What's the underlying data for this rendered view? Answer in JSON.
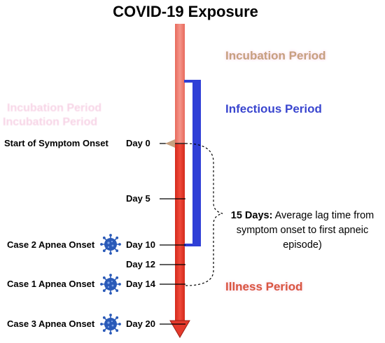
{
  "title": "COVID-19 Exposure",
  "periods": {
    "incubation": "Incubation Period",
    "infectious": "Infectious Period",
    "illness": "Illness Period"
  },
  "ghost_text": {
    "line1": "Incubation Period",
    "line2": "Incubation Period"
  },
  "milestones": [
    {
      "day_label": "Day 0",
      "event": "Start of Symptom Onset"
    },
    {
      "day_label": "Day 5",
      "event": ""
    },
    {
      "day_label": "Day 10",
      "event": ""
    },
    {
      "day_label": "Day 12",
      "event": "Case 2 Apnea Onset"
    },
    {
      "day_label": "Day 14",
      "event": "Case 1 Apnea Onset"
    },
    {
      "day_label": "Day 20",
      "event": "Case 3 Apnea Onset"
    }
  ],
  "lag_annotation": {
    "bold": "15 Days:",
    "rest": " Average lag time from symptom onset to first apneic episode)"
  },
  "colors": {
    "incubation_bar": "#f08877",
    "illness_bar": "#e4392b",
    "infectious_bracket": "#2f3fd6",
    "virus": "#2a5ab8"
  },
  "icons": {
    "virus": "virus-icon"
  }
}
